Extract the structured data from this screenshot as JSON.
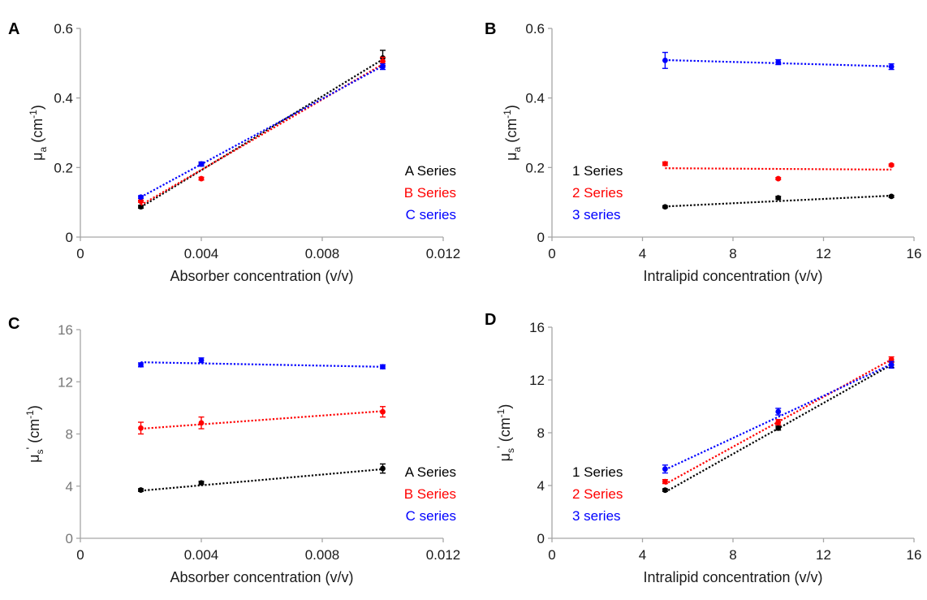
{
  "chart_data": [
    {
      "panel": "A",
      "type": "scatter",
      "xlabel": "Absorber concentration (v/v)",
      "ylabel_main": "μ",
      "ylabel_sub": "a",
      "ylabel_unit_pre": " (cm",
      "ylabel_unit_sup": "-1",
      "ylabel_unit_post": ")",
      "xlim": [
        0,
        0.012
      ],
      "ylim": [
        0,
        0.6
      ],
      "xticks": [
        "0",
        "0.004",
        "0.008",
        "0.012"
      ],
      "xtick_values": [
        0,
        0.004,
        0.008,
        0.012
      ],
      "yticks": [
        "0",
        "0.2",
        "0.4",
        "0.6"
      ],
      "ytick_values": [
        0,
        0.2,
        0.4,
        0.6
      ],
      "legend_placement": "lower-right",
      "series": [
        {
          "name": "A Series",
          "color": "#000000",
          "x": [
            0.002,
            0.004,
            0.01
          ],
          "y": [
            0.087,
            0.21,
            0.515
          ],
          "err": [
            0.004,
            0.005,
            0.022
          ],
          "fit": [
            0.086,
            0.511
          ]
        },
        {
          "name": "B Series",
          "color": "#ff0000",
          "x": [
            0.002,
            0.004,
            0.01
          ],
          "y": [
            0.103,
            0.168,
            0.505
          ],
          "err": [
            0.003,
            0.004,
            0.012
          ],
          "fit": [
            0.092,
            0.497
          ]
        },
        {
          "name": "C series",
          "color": "#0000ff",
          "x": [
            0.002,
            0.004,
            0.01
          ],
          "y": [
            0.115,
            0.21,
            0.49
          ],
          "err": [
            0.004,
            0.006,
            0.008
          ],
          "fit": [
            0.115,
            0.492
          ]
        }
      ]
    },
    {
      "panel": "B",
      "type": "scatter",
      "xlabel": "Intralipid concentration (v/v)",
      "ylabel_main": "μ",
      "ylabel_sub": "a",
      "ylabel_unit_pre": " (cm",
      "ylabel_unit_sup": "-1",
      "ylabel_unit_post": ")",
      "xlim": [
        0,
        16
      ],
      "ylim": [
        0,
        0.6
      ],
      "xticks": [
        "0",
        "4",
        "8",
        "12",
        "16"
      ],
      "xtick_values": [
        0,
        4,
        8,
        12,
        16
      ],
      "yticks": [
        "0",
        "0.2",
        "0.4",
        "0.6"
      ],
      "ytick_values": [
        0,
        0.2,
        0.4,
        0.6
      ],
      "legend_placement": "lower-left",
      "series": [
        {
          "name": "1 Series",
          "color": "#000000",
          "x": [
            5,
            10,
            15
          ],
          "y": [
            0.087,
            0.113,
            0.117
          ],
          "err": [
            0.003,
            0.004,
            0.003
          ],
          "fit": [
            0.088,
            0.119
          ]
        },
        {
          "name": "2 Series",
          "color": "#ff0000",
          "x": [
            5,
            10,
            15
          ],
          "y": [
            0.211,
            0.168,
            0.207
          ],
          "err": [
            0.005,
            0.003,
            0.003
          ],
          "fit": [
            0.198,
            0.194
          ]
        },
        {
          "name": "3 series",
          "color": "#0000ff",
          "x": [
            5,
            10,
            15
          ],
          "y": [
            0.508,
            0.503,
            0.49
          ],
          "err": [
            0.023,
            0.007,
            0.008
          ],
          "fit": [
            0.509,
            0.491
          ]
        }
      ]
    },
    {
      "panel": "C",
      "type": "scatter",
      "xlabel": "Absorber concentration (v/v)",
      "ylabel_main": "μ",
      "ylabel_sub": "s",
      "ylabel_prime": "'",
      "ylabel_unit_pre": " (cm",
      "ylabel_unit_sup": "-1",
      "ylabel_unit_post": ")",
      "xlim": [
        0,
        0.012
      ],
      "ylim": [
        0,
        16
      ],
      "xticks": [
        "0",
        "0.004",
        "0.008",
        "0.012"
      ],
      "xtick_values": [
        0,
        0.004,
        0.008,
        0.012
      ],
      "yticks": [
        "0",
        "4",
        "8",
        "12",
        "16"
      ],
      "ytick_values": [
        0,
        4,
        8,
        12,
        16
      ],
      "legend_placement": "lower-right",
      "series": [
        {
          "name": "A Series",
          "color": "#000000",
          "x": [
            0.002,
            0.004,
            0.01
          ],
          "y": [
            3.7,
            4.25,
            5.35
          ],
          "err": [
            0.1,
            0.12,
            0.35
          ],
          "fit": [
            3.65,
            5.3
          ]
        },
        {
          "name": "B Series",
          "color": "#ff0000",
          "x": [
            0.002,
            0.004,
            0.01
          ],
          "y": [
            8.45,
            8.85,
            9.7
          ],
          "err": [
            0.45,
            0.45,
            0.4
          ],
          "fit": [
            8.4,
            9.75
          ]
        },
        {
          "name": "C series",
          "color": "#0000ff",
          "x": [
            0.002,
            0.004,
            0.01
          ],
          "y": [
            13.3,
            13.65,
            13.15
          ],
          "err": [
            0.15,
            0.18,
            0.15
          ],
          "fit": [
            13.5,
            13.15
          ]
        }
      ]
    },
    {
      "panel": "D",
      "type": "scatter",
      "xlabel": "Intralipid concentration (v/v)",
      "ylabel_main": "μ",
      "ylabel_sub": "s",
      "ylabel_prime": "'",
      "ylabel_unit_pre": " (cm",
      "ylabel_unit_sup": "-1",
      "ylabel_unit_post": ")",
      "xlim": [
        0,
        16
      ],
      "ylim": [
        0,
        16
      ],
      "xticks": [
        "0",
        "4",
        "8",
        "12",
        "16"
      ],
      "xtick_values": [
        0,
        4,
        8,
        12,
        16
      ],
      "yticks": [
        "0",
        "4",
        "8",
        "12",
        "16"
      ],
      "ytick_values": [
        0,
        4,
        8,
        12,
        16
      ],
      "legend_placement": "lower-left",
      "series": [
        {
          "name": "1 Series",
          "color": "#000000",
          "x": [
            5,
            10,
            15
          ],
          "y": [
            3.65,
            8.35,
            13.15
          ],
          "err": [
            0.1,
            0.15,
            0.2
          ],
          "fit": [
            3.5,
            13.15
          ]
        },
        {
          "name": "2 Series",
          "color": "#ff0000",
          "x": [
            5,
            10,
            15
          ],
          "y": [
            4.3,
            8.8,
            13.55
          ],
          "err": [
            0.15,
            0.2,
            0.2
          ],
          "fit": [
            4.1,
            13.55
          ]
        },
        {
          "name": "3 series",
          "color": "#0000ff",
          "x": [
            5,
            10,
            15
          ],
          "y": [
            5.25,
            9.6,
            13.15
          ],
          "err": [
            0.3,
            0.25,
            0.25
          ],
          "fit": [
            5.2,
            13.2
          ]
        }
      ]
    }
  ]
}
